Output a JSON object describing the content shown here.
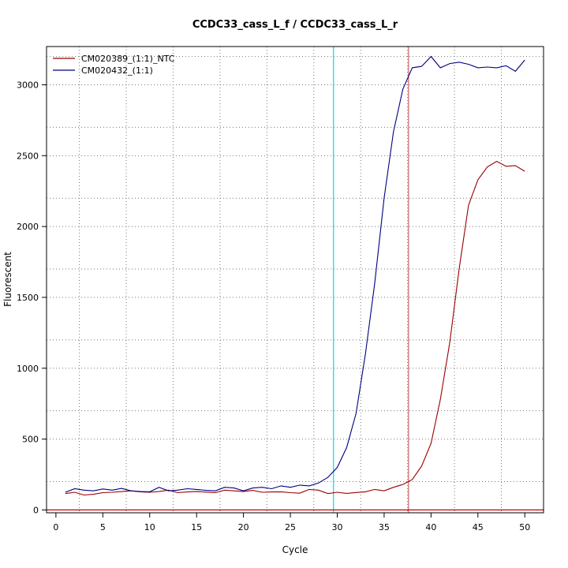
{
  "chart_data": {
    "type": "line",
    "title": "CCDC33_cass_L_f / CCDC33_cass_L_r",
    "xlabel": "Cycle",
    "ylabel": "Fluorescent",
    "xlim": [
      -1,
      52
    ],
    "ylim": [
      -20,
      3270
    ],
    "x_ticks": [
      0,
      5,
      10,
      15,
      20,
      25,
      30,
      35,
      40,
      45,
      50
    ],
    "y_ticks": [
      0,
      500,
      1000,
      1500,
      2000,
      2500,
      3000
    ],
    "x_tick_labels": [
      "0",
      "5",
      "10",
      "15",
      "20",
      "25",
      "30",
      "35",
      "40",
      "45",
      "50"
    ],
    "y_tick_labels": [
      "0",
      "500",
      "1000",
      "1500",
      "2000",
      "2500",
      "3000"
    ],
    "grid": true,
    "grid_x": [
      2.5,
      7.5,
      12.5,
      17.5,
      22.5,
      27.5,
      32.5,
      37.5,
      42.5,
      47.5
    ],
    "grid_y": [
      0,
      200,
      500,
      700,
      1000,
      1200,
      1500,
      1700,
      2000,
      2200,
      2500,
      2700,
      3000,
      3200
    ],
    "legend_position": "top-left",
    "threshold_y": 0,
    "threshold_color": "#cc0000",
    "vlines": [
      {
        "x": 29.6,
        "color": "#00e0e0"
      },
      {
        "x": 37.6,
        "color": "#cc6666"
      }
    ],
    "series": [
      {
        "name": "CM020389_(1:1)_NTC",
        "color": "#990000",
        "x": [
          1,
          2,
          3,
          4,
          5,
          6,
          7,
          8,
          9,
          10,
          11,
          12,
          13,
          14,
          15,
          16,
          17,
          18,
          19,
          20,
          21,
          22,
          23,
          24,
          25,
          26,
          27,
          28,
          29,
          30,
          31,
          32,
          33,
          34,
          35,
          36,
          37,
          38,
          39,
          40,
          41,
          42,
          43,
          44,
          45,
          46,
          47,
          48,
          49,
          50
        ],
        "y": [
          115,
          125,
          105,
          110,
          122,
          125,
          130,
          135,
          128,
          125,
          130,
          140,
          122,
          127,
          130,
          126,
          122,
          140,
          135,
          130,
          138,
          125,
          127,
          128,
          122,
          118,
          145,
          140,
          115,
          125,
          117,
          123,
          128,
          145,
          135,
          160,
          180,
          215,
          310,
          470,
          780,
          1180,
          1700,
          2150,
          2330,
          2420,
          2460,
          2425,
          2430,
          2390
        ]
      },
      {
        "name": "CM020432_(1:1)",
        "color": "#000080",
        "x": [
          1,
          2,
          3,
          4,
          5,
          6,
          7,
          8,
          9,
          10,
          11,
          12,
          13,
          14,
          15,
          16,
          17,
          18,
          19,
          20,
          21,
          22,
          23,
          24,
          25,
          26,
          27,
          28,
          29,
          30,
          31,
          32,
          33,
          34,
          35,
          36,
          37,
          38,
          39,
          40,
          41,
          42,
          43,
          44,
          45,
          46,
          47,
          48,
          49,
          50
        ],
        "y": [
          125,
          150,
          140,
          135,
          148,
          140,
          152,
          135,
          130,
          128,
          160,
          135,
          140,
          150,
          145,
          138,
          135,
          160,
          155,
          135,
          155,
          160,
          150,
          170,
          160,
          175,
          170,
          190,
          230,
          300,
          440,
          680,
          1100,
          1600,
          2200,
          2670,
          2970,
          3120,
          3130,
          3200,
          3120,
          3150,
          3160,
          3145,
          3120,
          3125,
          3120,
          3135,
          3095,
          3175
        ]
      }
    ]
  }
}
